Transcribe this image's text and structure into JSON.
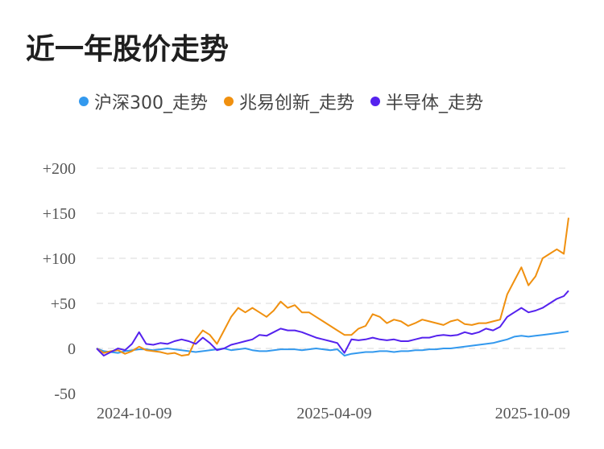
{
  "chart_data": {
    "type": "line",
    "title": "近一年股价走势",
    "x_tick_labels": [
      "2024-10-09",
      "2025-04-09",
      "2025-10-09"
    ],
    "y_tick_labels": [
      "+200",
      "+150",
      "+100",
      "+50",
      "0",
      "-50"
    ],
    "y_ticks": [
      200,
      150,
      100,
      50,
      0,
      -50
    ],
    "ylim": [
      -50,
      200
    ],
    "grid": true,
    "legend": "top",
    "series": [
      {
        "name": "沪深300_走势",
        "color": "#3399ee",
        "points": [
          [
            0,
            0
          ],
          [
            3,
            -3
          ],
          [
            6,
            -4
          ],
          [
            9,
            -5
          ],
          [
            12,
            -3
          ],
          [
            15,
            -2
          ],
          [
            18,
            -1
          ],
          [
            21,
            -1
          ],
          [
            24,
            -2
          ],
          [
            27,
            -1
          ],
          [
            30,
            0
          ],
          [
            33,
            -1
          ],
          [
            36,
            -2
          ],
          [
            39,
            -3
          ],
          [
            42,
            -4
          ],
          [
            45,
            -3
          ],
          [
            48,
            -2
          ],
          [
            51,
            -1
          ],
          [
            54,
            0
          ],
          [
            57,
            -2
          ],
          [
            60,
            -1
          ],
          [
            63,
            0
          ],
          [
            66,
            -2
          ],
          [
            69,
            -3
          ],
          [
            72,
            -3
          ],
          [
            75,
            -2
          ],
          [
            78,
            -1
          ],
          [
            81,
            -1
          ],
          [
            84,
            -1
          ],
          [
            87,
            -2
          ],
          [
            90,
            -1
          ],
          [
            93,
            0
          ],
          [
            96,
            -1
          ],
          [
            99,
            -2
          ],
          [
            102,
            -1
          ],
          [
            105,
            -8
          ],
          [
            108,
            -6
          ],
          [
            111,
            -5
          ],
          [
            114,
            -4
          ],
          [
            117,
            -4
          ],
          [
            120,
            -3
          ],
          [
            123,
            -3
          ],
          [
            126,
            -4
          ],
          [
            129,
            -3
          ],
          [
            132,
            -3
          ],
          [
            135,
            -2
          ],
          [
            138,
            -2
          ],
          [
            141,
            -1
          ],
          [
            144,
            -1
          ],
          [
            147,
            0
          ],
          [
            150,
            0
          ],
          [
            153,
            1
          ],
          [
            156,
            2
          ],
          [
            159,
            3
          ],
          [
            162,
            4
          ],
          [
            165,
            5
          ],
          [
            168,
            6
          ],
          [
            171,
            8
          ],
          [
            174,
            10
          ],
          [
            177,
            13
          ],
          [
            180,
            14
          ],
          [
            183,
            13
          ],
          [
            186,
            14
          ],
          [
            189,
            15
          ],
          [
            192,
            16
          ],
          [
            195,
            17
          ],
          [
            198,
            18
          ],
          [
            200,
            19
          ]
        ]
      },
      {
        "name": "兆易创新_走势",
        "color": "#f0900f",
        "points": [
          [
            0,
            0
          ],
          [
            3,
            -5
          ],
          [
            6,
            -3
          ],
          [
            9,
            -2
          ],
          [
            12,
            -6
          ],
          [
            15,
            -3
          ],
          [
            18,
            2
          ],
          [
            21,
            -2
          ],
          [
            24,
            -3
          ],
          [
            27,
            -4
          ],
          [
            30,
            -6
          ],
          [
            33,
            -5
          ],
          [
            36,
            -8
          ],
          [
            39,
            -7
          ],
          [
            42,
            10
          ],
          [
            45,
            20
          ],
          [
            48,
            15
          ],
          [
            51,
            5
          ],
          [
            54,
            20
          ],
          [
            57,
            35
          ],
          [
            60,
            45
          ],
          [
            63,
            40
          ],
          [
            66,
            45
          ],
          [
            69,
            40
          ],
          [
            72,
            35
          ],
          [
            75,
            42
          ],
          [
            78,
            52
          ],
          [
            81,
            45
          ],
          [
            84,
            48
          ],
          [
            87,
            40
          ],
          [
            90,
            40
          ],
          [
            93,
            35
          ],
          [
            96,
            30
          ],
          [
            99,
            25
          ],
          [
            102,
            20
          ],
          [
            105,
            15
          ],
          [
            108,
            15
          ],
          [
            111,
            22
          ],
          [
            114,
            25
          ],
          [
            117,
            38
          ],
          [
            120,
            35
          ],
          [
            123,
            28
          ],
          [
            126,
            32
          ],
          [
            129,
            30
          ],
          [
            132,
            25
          ],
          [
            135,
            28
          ],
          [
            138,
            32
          ],
          [
            141,
            30
          ],
          [
            144,
            28
          ],
          [
            147,
            26
          ],
          [
            150,
            30
          ],
          [
            153,
            32
          ],
          [
            156,
            27
          ],
          [
            159,
            26
          ],
          [
            162,
            28
          ],
          [
            165,
            28
          ],
          [
            168,
            30
          ],
          [
            171,
            32
          ],
          [
            174,
            60
          ],
          [
            177,
            75
          ],
          [
            180,
            90
          ],
          [
            183,
            70
          ],
          [
            186,
            80
          ],
          [
            189,
            100
          ],
          [
            192,
            105
          ],
          [
            195,
            110
          ],
          [
            198,
            105
          ],
          [
            200,
            145
          ]
        ]
      },
      {
        "name": "半导体_走势",
        "color": "#5522ee",
        "points": [
          [
            0,
            0
          ],
          [
            3,
            -8
          ],
          [
            6,
            -4
          ],
          [
            9,
            0
          ],
          [
            12,
            -2
          ],
          [
            15,
            5
          ],
          [
            18,
            18
          ],
          [
            21,
            5
          ],
          [
            24,
            4
          ],
          [
            27,
            6
          ],
          [
            30,
            5
          ],
          [
            33,
            8
          ],
          [
            36,
            10
          ],
          [
            39,
            8
          ],
          [
            42,
            5
          ],
          [
            45,
            12
          ],
          [
            48,
            6
          ],
          [
            51,
            -2
          ],
          [
            54,
            0
          ],
          [
            57,
            4
          ],
          [
            60,
            6
          ],
          [
            63,
            8
          ],
          [
            66,
            10
          ],
          [
            69,
            15
          ],
          [
            72,
            14
          ],
          [
            75,
            18
          ],
          [
            78,
            22
          ],
          [
            81,
            20
          ],
          [
            84,
            20
          ],
          [
            87,
            18
          ],
          [
            90,
            15
          ],
          [
            93,
            12
          ],
          [
            96,
            10
          ],
          [
            99,
            8
          ],
          [
            102,
            6
          ],
          [
            105,
            -5
          ],
          [
            108,
            10
          ],
          [
            111,
            9
          ],
          [
            114,
            10
          ],
          [
            117,
            12
          ],
          [
            120,
            10
          ],
          [
            123,
            9
          ],
          [
            126,
            10
          ],
          [
            129,
            8
          ],
          [
            132,
            8
          ],
          [
            135,
            10
          ],
          [
            138,
            12
          ],
          [
            141,
            12
          ],
          [
            144,
            14
          ],
          [
            147,
            15
          ],
          [
            150,
            14
          ],
          [
            153,
            15
          ],
          [
            156,
            18
          ],
          [
            159,
            16
          ],
          [
            162,
            18
          ],
          [
            165,
            22
          ],
          [
            168,
            20
          ],
          [
            171,
            24
          ],
          [
            174,
            35
          ],
          [
            177,
            40
          ],
          [
            180,
            45
          ],
          [
            183,
            40
          ],
          [
            186,
            42
          ],
          [
            189,
            45
          ],
          [
            192,
            50
          ],
          [
            195,
            55
          ],
          [
            198,
            58
          ],
          [
            200,
            64
          ]
        ]
      }
    ]
  }
}
